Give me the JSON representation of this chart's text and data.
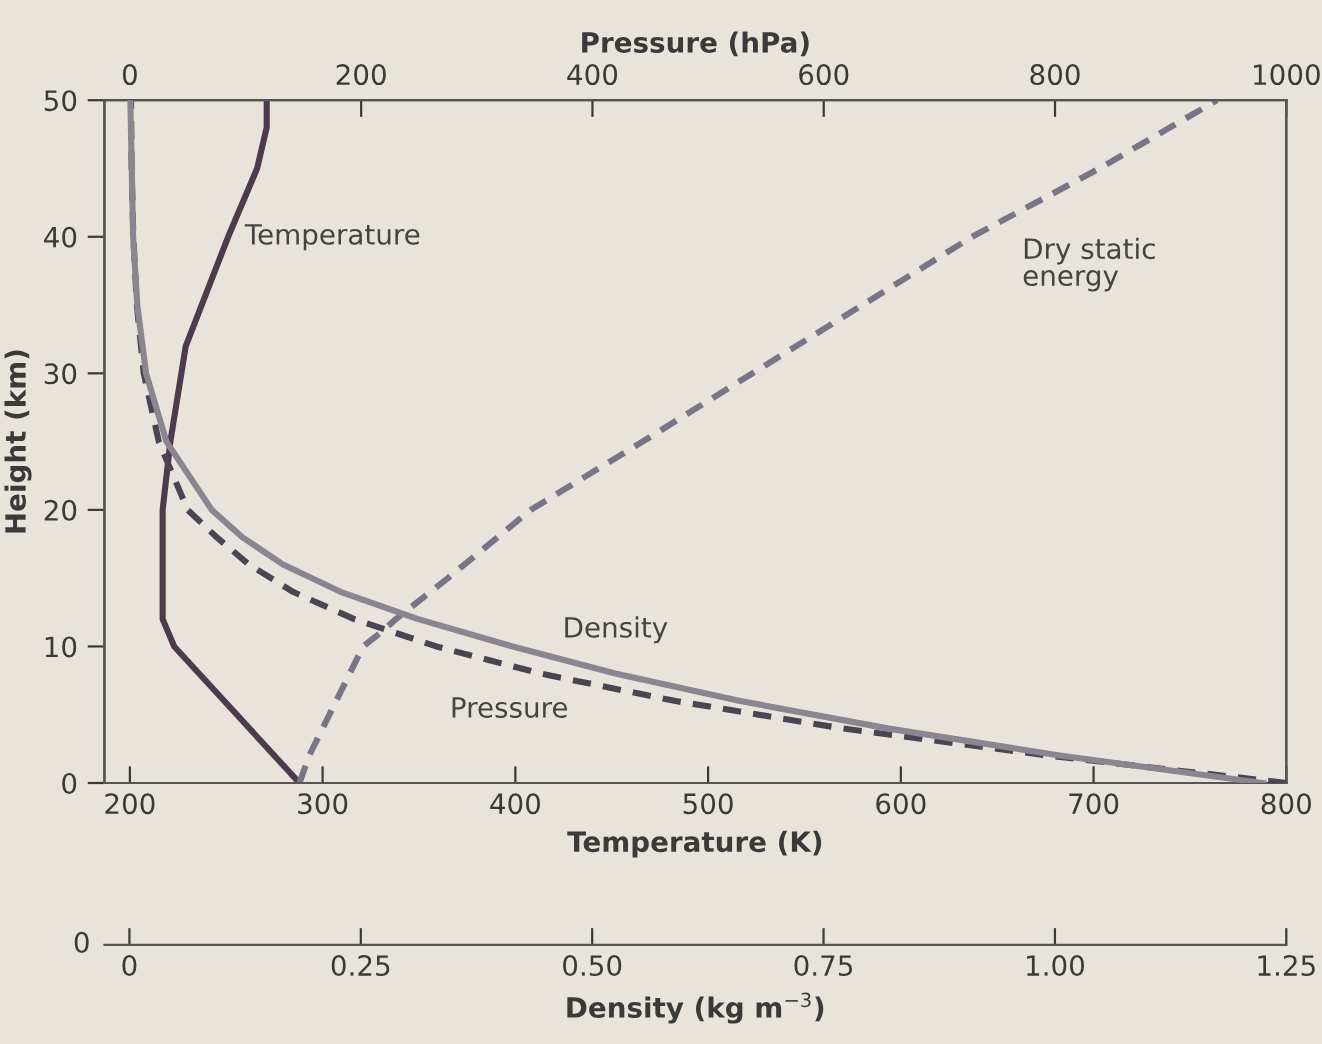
{
  "chart_data": [
    {
      "type": "line",
      "xlabel": "Temperature (K)",
      "x2label": "Pressure (hPa)",
      "ylabel": "Height (km)",
      "xlim": [
        186.8,
        800
      ],
      "xticks": [
        200,
        300,
        400,
        500,
        600,
        700,
        800
      ],
      "x2lim": [
        -22,
        1000
      ],
      "x2ticks": [
        0,
        200,
        400,
        600,
        800,
        1000
      ],
      "ylim": [
        0,
        50
      ],
      "yticks": [
        0,
        10,
        20,
        30,
        40,
        50
      ],
      "grid": false,
      "marker": "none",
      "series": [
        {
          "name": "Temperature",
          "color": "#4b3b4d",
          "line_style": "solid",
          "x": [
            288,
            223,
            217,
            217,
            221,
            229,
            251,
            266,
            271,
            271
          ],
          "values": [
            0,
            10,
            12,
            20,
            25,
            32,
            40,
            45,
            48,
            50
          ]
        },
        {
          "name": "Pressure",
          "color": "#4a4552",
          "line_style": "dashed",
          "axis": "x2",
          "x": [
            1000,
            795,
            616,
            472,
            356,
            265,
            194,
            141,
            103,
            75,
            50,
            25,
            12,
            6,
            3,
            1.5,
            1
          ],
          "values": [
            0,
            2,
            4,
            6,
            8,
            10,
            12,
            14,
            16,
            18,
            20,
            25,
            30,
            35,
            40,
            45,
            50
          ]
        },
        {
          "name": "Dry static energy",
          "color": "#7a7488",
          "line_style": "dashed",
          "x": [
            288,
            293,
            300,
            307,
            314,
            321,
            330,
            338,
            365,
            408,
            466,
            523,
            580,
            637,
            703,
            764
          ],
          "values": [
            0,
            2,
            4,
            6,
            8,
            10,
            11,
            12,
            15,
            20,
            25,
            30,
            35,
            40,
            45,
            50
          ]
        }
      ]
    },
    {
      "type": "line",
      "xlabel": "Density (kg m$^{−3}$)",
      "xlim": [
        -0.027,
        1.25
      ],
      "xticks": [
        0,
        {
          "value": 0.25,
          "label": "0.25"
        },
        {
          "value": 0.5,
          "label": "0.50"
        },
        {
          "value": 0.75,
          "label": "0.75"
        },
        {
          "value": 1.0,
          "label": "1.00"
        },
        1.25
      ],
      "ylim": [
        0,
        50
      ],
      "annotations": [
        "0"
      ],
      "marker": "none",
      "series": [
        {
          "name": "Density",
          "color": "#8a8590",
          "line_style": "solid",
          "x": [
            1.225,
            1.007,
            0.819,
            0.66,
            0.526,
            0.414,
            0.312,
            0.228,
            0.166,
            0.122,
            0.089,
            0.04,
            0.018,
            0.0085,
            0.004,
            0.001
          ],
          "values": [
            0,
            2,
            4,
            6,
            8,
            10,
            12,
            14,
            16,
            18,
            20,
            25,
            30,
            35,
            40,
            50
          ]
        }
      ]
    }
  ]
}
